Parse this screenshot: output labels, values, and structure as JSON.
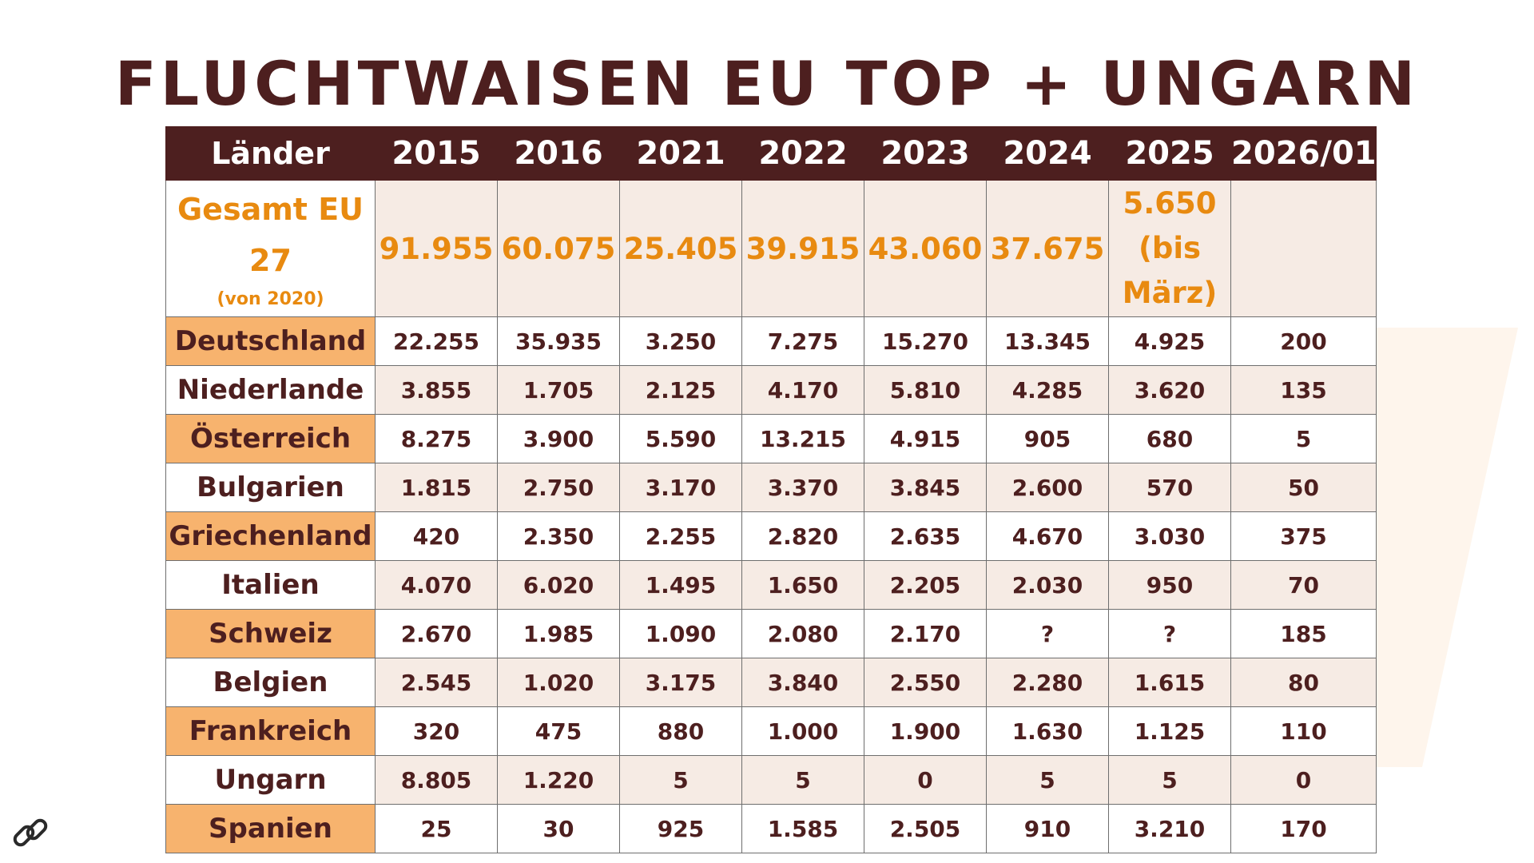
{
  "title": "FLUCHTWAISEN EU TOP + UNGARN",
  "colors": {
    "header_bg": "#4d1f1f",
    "header_text": "#ffffff",
    "accent_orange": "#e88a10",
    "label_orange_bg": "#f7b36e",
    "alt_row_bg": "#f6ebe4",
    "body_text": "#4d1f1f"
  },
  "icons": {
    "link": "link-icon"
  },
  "chart_data": {
    "type": "table",
    "title": "FLUCHTWAISEN EU TOP + UNGARN",
    "columns": [
      "Länder",
      "2015",
      "2016",
      "2021",
      "2022",
      "2023",
      "2024",
      "2025",
      "2026/01"
    ],
    "total_row": {
      "label": "Gesamt EU 27",
      "label_note": "(von 2020)",
      "values": [
        "91.955",
        "60.075",
        "25.405",
        "39.915",
        "43.060",
        "37.675",
        "5.650 (bis März)",
        ""
      ]
    },
    "rows": [
      {
        "country": "Deutschland",
        "values": [
          "22.255",
          "35.935",
          "3.250",
          "7.275",
          "15.270",
          "13.345",
          "4.925",
          "200"
        ]
      },
      {
        "country": "Niederlande",
        "values": [
          "3.855",
          "1.705",
          "2.125",
          "4.170",
          "5.810",
          "4.285",
          "3.620",
          "135"
        ]
      },
      {
        "country": "Österreich",
        "values": [
          "8.275",
          "3.900",
          "5.590",
          "13.215",
          "4.915",
          "905",
          "680",
          "5"
        ]
      },
      {
        "country": "Bulgarien",
        "values": [
          "1.815",
          "2.750",
          "3.170",
          "3.370",
          "3.845",
          "2.600",
          "570",
          "50"
        ]
      },
      {
        "country": "Griechenland",
        "values": [
          "420",
          "2.350",
          "2.255",
          "2.820",
          "2.635",
          "4.670",
          "3.030",
          "375"
        ]
      },
      {
        "country": "Italien",
        "values": [
          "4.070",
          "6.020",
          "1.495",
          "1.650",
          "2.205",
          "2.030",
          "950",
          "70"
        ]
      },
      {
        "country": "Schweiz",
        "values": [
          "2.670",
          "1.985",
          "1.090",
          "2.080",
          "2.170",
          "?",
          "?",
          "185"
        ]
      },
      {
        "country": "Belgien",
        "values": [
          "2.545",
          "1.020",
          "3.175",
          "3.840",
          "2.550",
          "2.280",
          "1.615",
          "80"
        ]
      },
      {
        "country": "Frankreich",
        "values": [
          "320",
          "475",
          "880",
          "1.000",
          "1.900",
          "1.630",
          "1.125",
          "110"
        ]
      },
      {
        "country": "Ungarn",
        "values": [
          "8.805",
          "1.220",
          "5",
          "5",
          "0",
          "5",
          "5",
          "0"
        ]
      },
      {
        "country": "Spanien",
        "values": [
          "25",
          "30",
          "925",
          "1.585",
          "2.505",
          "910",
          "3.210",
          "170"
        ]
      }
    ]
  }
}
